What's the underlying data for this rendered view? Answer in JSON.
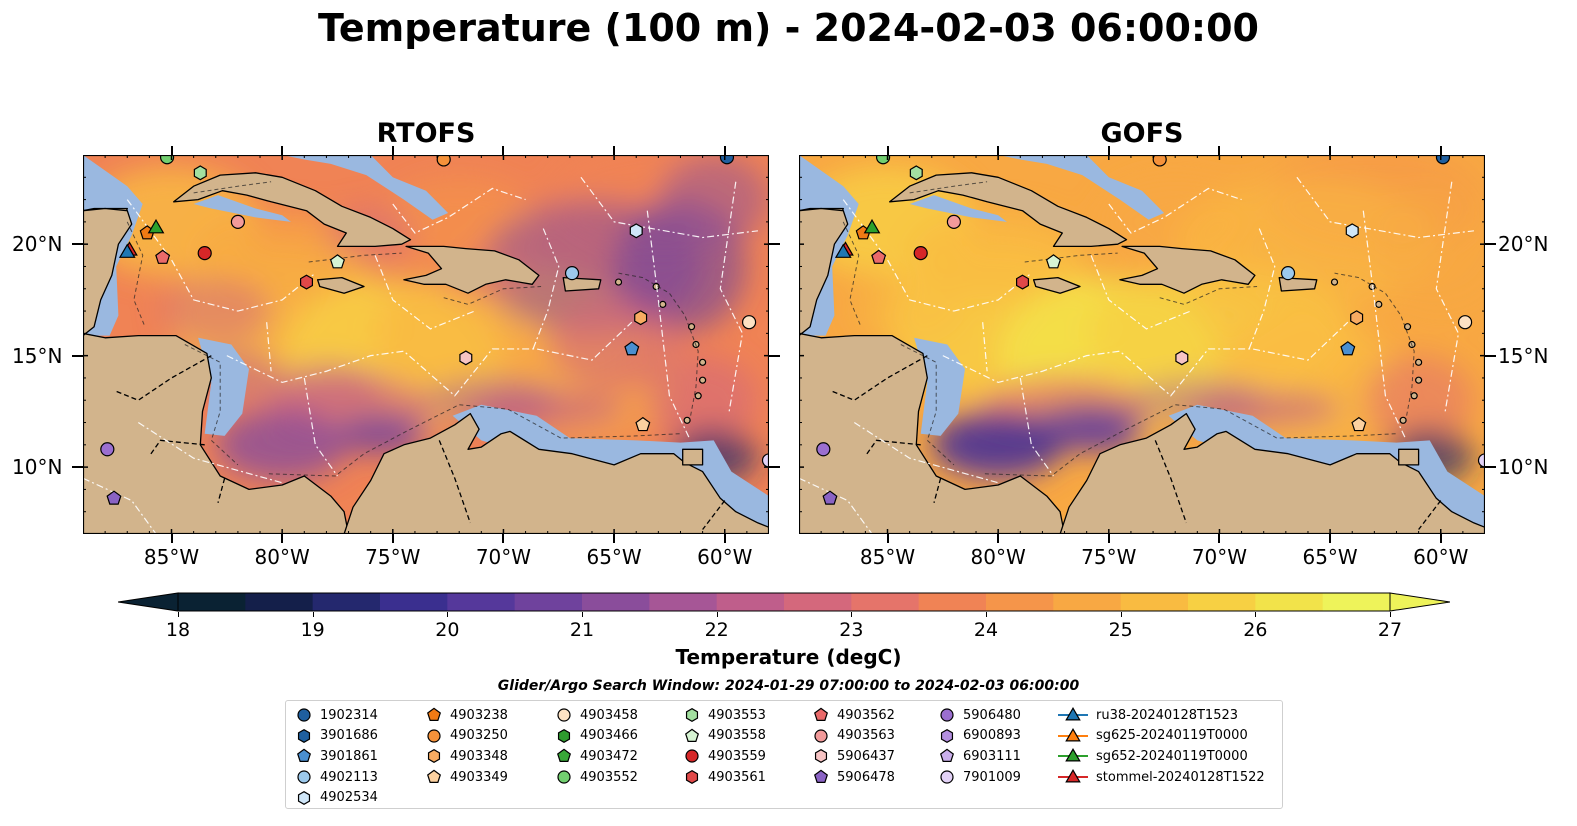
{
  "title": "Temperature (100 m) - 2024-02-03 06:00:00",
  "panels": [
    {
      "title": "RTOFS"
    },
    {
      "title": "GOFS"
    }
  ],
  "axes": {
    "x_ticks": [
      "85°W",
      "80°W",
      "75°W",
      "70°W",
      "65°W",
      "60°W"
    ],
    "y_ticks": [
      "20°N",
      "15°N",
      "10°N"
    ]
  },
  "colorbar": {
    "label": "Temperature (degC)",
    "ticks": [
      "18",
      "19",
      "20",
      "21",
      "22",
      "23",
      "24",
      "25",
      "26",
      "27"
    ],
    "min": 18,
    "max": 27,
    "extend": "both",
    "colors": [
      "#0a2233",
      "#141f4a",
      "#24286e",
      "#3a2f8f",
      "#55389b",
      "#6f429d",
      "#8a4d9b",
      "#a65696",
      "#bf5e8b",
      "#d4687c",
      "#e5746a",
      "#f08355",
      "#f5954a",
      "#f8a843",
      "#f9bb41",
      "#f7d043",
      "#f2e34a",
      "#eef35a"
    ]
  },
  "search_window": "Glider/Argo Search Window: 2024-01-29 07:00:00 to 2024-02-03 06:00:00",
  "legend": {
    "columns": [
      [
        {
          "label": "1902314",
          "marker": "circle",
          "color": "#1f5f9f"
        },
        {
          "label": "3901686",
          "marker": "hexagon",
          "color": "#1f5f9f"
        },
        {
          "label": "3901861",
          "marker": "pentagon",
          "color": "#4a8fd0"
        },
        {
          "label": "4902113",
          "marker": "circle",
          "color": "#9cc9ec"
        },
        {
          "label": "4902534",
          "marker": "hexagon",
          "color": "#cfe6f8"
        }
      ],
      [
        {
          "label": "4903238",
          "marker": "pentagon",
          "color": "#f07a14"
        },
        {
          "label": "4903250",
          "marker": "circle",
          "color": "#f5923a"
        },
        {
          "label": "4903348",
          "marker": "hexagon",
          "color": "#f8ac62"
        },
        {
          "label": "4903349",
          "marker": "pentagon",
          "color": "#fcd1a0"
        }
      ],
      [
        {
          "label": "4903458",
          "marker": "circle",
          "color": "#fde2c4"
        },
        {
          "label": "4903466",
          "marker": "hexagon",
          "color": "#2e9b2e"
        },
        {
          "label": "4903472",
          "marker": "pentagon",
          "color": "#39a838"
        },
        {
          "label": "4903552",
          "marker": "circle",
          "color": "#72cf70"
        }
      ],
      [
        {
          "label": "4903553",
          "marker": "hexagon",
          "color": "#a3e0a0"
        },
        {
          "label": "4903558",
          "marker": "pentagon",
          "color": "#d7f4d3"
        },
        {
          "label": "4903559",
          "marker": "circle",
          "color": "#d62728"
        },
        {
          "label": "4903561",
          "marker": "hexagon",
          "color": "#e04848"
        }
      ],
      [
        {
          "label": "4903562",
          "marker": "pentagon",
          "color": "#ea6a6a"
        },
        {
          "label": "4903563",
          "marker": "circle",
          "color": "#f29a9a"
        },
        {
          "label": "5906437",
          "marker": "hexagon",
          "color": "#f7c4c4"
        },
        {
          "label": "5906478",
          "marker": "pentagon",
          "color": "#8a63c4"
        }
      ],
      [
        {
          "label": "5906480",
          "marker": "circle",
          "color": "#9b6fd0"
        },
        {
          "label": "6900893",
          "marker": "hexagon",
          "color": "#b48fe0"
        },
        {
          "label": "6903111",
          "marker": "pentagon",
          "color": "#cbb0ec"
        },
        {
          "label": "7901009",
          "marker": "circle",
          "color": "#e3d2f7"
        }
      ],
      [
        {
          "label": "ru38-20240128T1523",
          "marker": "triangle-line",
          "color": "#1f77b4"
        },
        {
          "label": "sg625-20240119T0000",
          "marker": "triangle-line",
          "color": "#ff7f0e"
        },
        {
          "label": "sg652-20240119T0000",
          "marker": "triangle-line",
          "color": "#2ca02c"
        },
        {
          "label": "stommel-20240128T1522",
          "marker": "triangle-line",
          "color": "#d62728"
        }
      ]
    ]
  },
  "map_extent": {
    "lon": [
      -89,
      -58
    ],
    "lat": [
      7,
      24
    ]
  },
  "colors": {
    "land": "#d2b48c",
    "shelf": "#9ab8e0",
    "deep": "#0a2233"
  },
  "platforms": [
    {
      "id": "1902314",
      "lon": -59.9,
      "lat": 23.9
    },
    {
      "id": "3901861",
      "lon": -64.2,
      "lat": 15.3
    },
    {
      "id": "4902113",
      "lon": -66.9,
      "lat": 18.7
    },
    {
      "id": "4902534",
      "lon": -64.0,
      "lat": 20.6
    },
    {
      "id": "4903238",
      "lon": -86.1,
      "lat": 20.5
    },
    {
      "id": "4903348",
      "lon": -63.8,
      "lat": 16.7
    },
    {
      "id": "4903349",
      "lon": -63.7,
      "lat": 11.9
    },
    {
      "id": "4903458",
      "lon": -58.9,
      "lat": 16.5
    },
    {
      "id": "4903552",
      "lon": -85.2,
      "lat": 23.9
    },
    {
      "id": "4903553",
      "lon": -83.7,
      "lat": 23.2
    },
    {
      "id": "4903558",
      "lon": -77.5,
      "lat": 19.2
    },
    {
      "id": "4903559",
      "lon": -83.5,
      "lat": 19.6
    },
    {
      "id": "4903561",
      "lon": -78.9,
      "lat": 18.3
    },
    {
      "id": "4903562",
      "lon": -85.4,
      "lat": 19.4
    },
    {
      "id": "4903563",
      "lon": -82.0,
      "lat": 21.0
    },
    {
      "id": "5906437",
      "lon": -71.7,
      "lat": 14.9
    },
    {
      "id": "5906478",
      "lon": -87.6,
      "lat": 8.6
    },
    {
      "id": "5906480",
      "lon": -87.9,
      "lat": 10.8
    },
    {
      "id": "7901009",
      "lon": -58.0,
      "lat": 10.3
    },
    {
      "id": "4903250",
      "lon": -72.7,
      "lat": 23.8
    }
  ],
  "gliders": [
    {
      "id": "sg652-20240119T0000",
      "lon": -85.7,
      "lat": 20.7
    },
    {
      "id": "stommel-20240128T1522",
      "lon": -86.9,
      "lat": 19.7
    },
    {
      "id": "ru38-20240128T1523",
      "lon": -87.0,
      "lat": 19.6
    }
  ]
}
